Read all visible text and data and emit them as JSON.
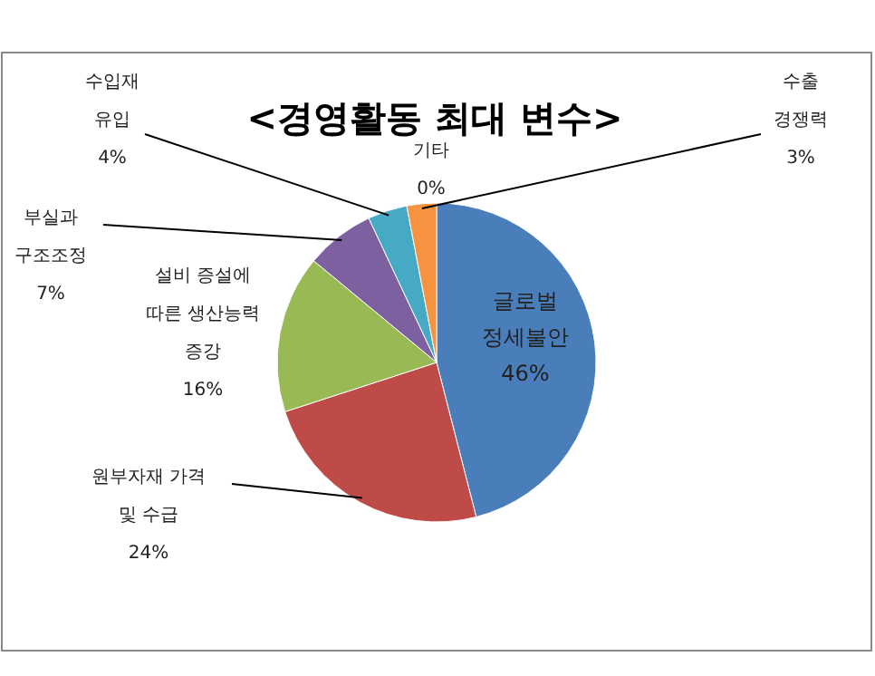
{
  "chart_data": {
    "type": "pie",
    "title": "<경영활동 최대 변수>",
    "categories": [
      "글로벌\n정세불안",
      "원부자재 가격\n및 수급",
      "설비 증설에\n따른 생산능력\n증강",
      "부실과\n구조조정",
      "수입재\n유입",
      "기타",
      "수출\n경쟁력"
    ],
    "values": [
      46,
      24,
      16,
      7,
      4,
      0,
      3
    ],
    "colors": [
      "#4a7ebb",
      "#be4b48",
      "#98b954",
      "#7d60a0",
      "#46aac5",
      null,
      "#f69240"
    ],
    "value_labels": [
      "46%",
      "24%",
      "16%",
      "7%",
      "4%",
      "0%",
      "3%"
    ]
  }
}
